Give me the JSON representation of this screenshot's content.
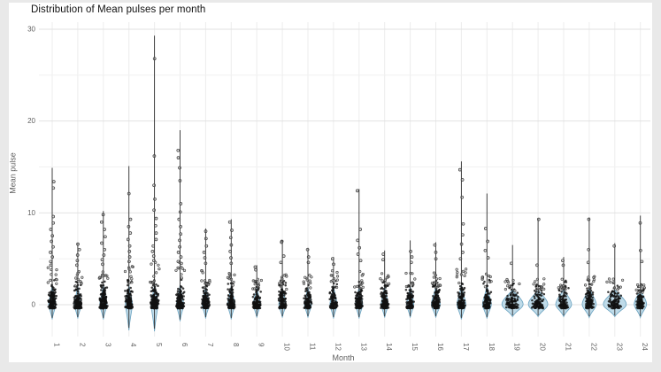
{
  "title": "Distribution of Mean pulses per month",
  "axes": {
    "x_label": "Month",
    "y_label": "Mean pulse",
    "y_ticks": [
      "0",
      "10",
      "20",
      "30"
    ],
    "y_tick_values": [
      0,
      10,
      20,
      30
    ],
    "y_minor_values": [
      5,
      15,
      25
    ],
    "x_ticks": [
      "1",
      "2",
      "3",
      "4",
      "5",
      "6",
      "7",
      "8",
      "9",
      "10",
      "11",
      "12",
      "13",
      "14",
      "15",
      "16",
      "17",
      "18",
      "19",
      "20",
      "21",
      "22",
      "23",
      "24"
    ]
  },
  "colors": {
    "page_bg": "#e9e9e9",
    "panel_bg": "#ffffff",
    "grid_major": "#e2e2e2",
    "grid_minor": "#f1f1f1",
    "grid_vertical": "#ececec",
    "tick_text": "#5f5f5f",
    "title_text": "#111111",
    "violin_fill": "#bcd9e8",
    "violin_stroke": "#69a2c0",
    "dense_point": "#111111",
    "outlier_fill": "#aaaaaa",
    "outlier_stroke": "#3d3d3d",
    "range_line": "#2f2f2f"
  },
  "chart_data": {
    "type": "scatter",
    "subtype": "jitter-strip with violin density, per month",
    "title": "Distribution of Mean pulses per month",
    "xlabel": "Month",
    "ylabel": "Mean pulse",
    "xlim": [
      0.5,
      24.5
    ],
    "ylim": [
      -3,
      30
    ],
    "grid": true,
    "legend": false,
    "note": "Each month: dense near-black jittered mass of points between ~-0.4 and dense_max, open-circle outliers above, a thin vertical range line up to max, and a narrow light-blue violin (wider flat violins for months 19-23). tail_min is the violin's lower tip below zero.",
    "months": [
      {
        "m": 1,
        "max": 14.9,
        "dense_max": 3.8,
        "outliers": [
          13.4,
          12.7,
          9.6,
          8.9,
          8.2,
          7.5,
          6.9,
          6.3,
          5.7,
          5.2,
          4.7,
          4.3
        ],
        "violin_halfwidth": 4,
        "tail_min": -1.6,
        "n_dense": 160
      },
      {
        "m": 2,
        "max": 6.7,
        "dense_max": 3.4,
        "outliers": [
          6.6,
          6.0,
          5.4,
          4.8,
          4.3
        ],
        "violin_halfwidth": 4,
        "tail_min": -1.5,
        "n_dense": 150
      },
      {
        "m": 3,
        "max": 10.2,
        "dense_max": 3.6,
        "outliers": [
          9.8,
          9.0,
          8.2,
          7.4,
          6.7,
          6.0,
          5.4,
          4.9,
          4.4
        ],
        "violin_halfwidth": 4,
        "tail_min": -1.6,
        "n_dense": 160
      },
      {
        "m": 4,
        "max": 15.1,
        "dense_max": 4.0,
        "outliers": [
          12.1,
          9.3,
          8.5,
          7.8,
          7.1,
          6.4,
          5.8,
          5.2,
          4.7
        ],
        "violin_halfwidth": 4,
        "tail_min": -2.8,
        "n_dense": 170
      },
      {
        "m": 5,
        "max": 29.3,
        "dense_max": 4.2,
        "outliers": [
          26.8,
          16.2,
          13.0,
          11.5,
          10.3,
          9.4,
          8.6,
          7.8,
          7.1,
          6.4,
          5.8,
          5.3,
          4.8
        ],
        "violin_halfwidth": 4,
        "tail_min": -2.9,
        "n_dense": 180
      },
      {
        "m": 6,
        "max": 19.0,
        "dense_max": 4.4,
        "outliers": [
          16.8,
          16.0,
          14.9,
          13.5,
          11.0,
          10.1,
          9.3,
          8.5,
          7.7,
          7.0,
          6.3,
          5.7,
          5.2,
          4.7
        ],
        "violin_halfwidth": 4,
        "tail_min": -1.8,
        "n_dense": 180
      },
      {
        "m": 7,
        "max": 8.3,
        "dense_max": 3.4,
        "outliers": [
          8.0,
          7.2,
          6.4,
          5.7,
          5.1,
          4.5
        ],
        "violin_halfwidth": 4,
        "tail_min": -1.5,
        "n_dense": 150
      },
      {
        "m": 8,
        "max": 9.3,
        "dense_max": 3.4,
        "outliers": [
          9.0,
          8.1,
          7.3,
          6.5,
          5.8,
          5.1,
          4.5
        ],
        "violin_halfwidth": 4,
        "tail_min": -1.6,
        "n_dense": 150
      },
      {
        "m": 9,
        "max": 4.3,
        "dense_max": 3.1,
        "outliers": [
          4.1,
          3.8
        ],
        "violin_halfwidth": 4,
        "tail_min": -1.4,
        "n_dense": 130
      },
      {
        "m": 10,
        "max": 7.0,
        "dense_max": 3.0,
        "outliers": [
          6.9,
          6.8,
          5.3,
          4.6
        ],
        "violin_halfwidth": 4,
        "tail_min": -1.4,
        "n_dense": 130
      },
      {
        "m": 11,
        "max": 6.2,
        "dense_max": 3.2,
        "outliers": [
          6.0,
          5.2,
          4.6
        ],
        "violin_halfwidth": 4,
        "tail_min": -1.4,
        "n_dense": 130
      },
      {
        "m": 12,
        "max": 5.2,
        "dense_max": 3.4,
        "outliers": [
          5.0,
          4.4
        ],
        "violin_halfwidth": 4,
        "tail_min": -1.5,
        "n_dense": 130
      },
      {
        "m": 13,
        "max": 12.6,
        "dense_max": 3.3,
        "outliers": [
          12.4,
          8.2,
          7.0,
          6.2,
          5.5,
          4.8
        ],
        "violin_halfwidth": 4,
        "tail_min": -1.5,
        "n_dense": 130
      },
      {
        "m": 14,
        "max": 5.9,
        "dense_max": 3.2,
        "outliers": [
          5.5,
          4.9
        ],
        "violin_halfwidth": 4,
        "tail_min": -1.4,
        "n_dense": 130
      },
      {
        "m": 15,
        "max": 7.0,
        "dense_max": 3.3,
        "outliers": [
          5.8,
          5.2,
          4.6
        ],
        "violin_halfwidth": 4,
        "tail_min": -1.4,
        "n_dense": 130
      },
      {
        "m": 16,
        "max": 6.8,
        "dense_max": 3.4,
        "outliers": [
          6.5,
          5.7,
          5.0
        ],
        "violin_halfwidth": 5,
        "tail_min": -1.4,
        "n_dense": 130
      },
      {
        "m": 17,
        "max": 15.6,
        "dense_max": 3.6,
        "outliers": [
          14.7,
          13.6,
          11.7,
          8.8,
          7.6,
          6.6,
          5.7,
          5.0
        ],
        "violin_halfwidth": 5,
        "tail_min": -1.6,
        "n_dense": 140
      },
      {
        "m": 18,
        "max": 12.1,
        "dense_max": 3.5,
        "outliers": [
          8.3,
          6.9,
          5.9,
          5.1
        ],
        "violin_halfwidth": 5,
        "tail_min": -1.5,
        "n_dense": 140
      },
      {
        "m": 19,
        "max": 6.5,
        "dense_max": 2.6,
        "outliers": [
          4.5
        ],
        "violin_halfwidth": 12,
        "tail_min": -1.3,
        "n_dense": 110
      },
      {
        "m": 20,
        "max": 9.4,
        "dense_max": 2.6,
        "outliers": [
          9.3,
          4.3
        ],
        "violin_halfwidth": 11,
        "tail_min": -1.3,
        "n_dense": 110
      },
      {
        "m": 21,
        "max": 5.2,
        "dense_max": 2.7,
        "outliers": [
          4.8,
          4.3
        ],
        "violin_halfwidth": 9,
        "tail_min": -1.3,
        "n_dense": 110
      },
      {
        "m": 22,
        "max": 9.5,
        "dense_max": 2.9,
        "outliers": [
          9.3,
          6.0,
          4.6
        ],
        "violin_halfwidth": 8,
        "tail_min": -1.4,
        "n_dense": 120
      },
      {
        "m": 23,
        "max": 6.7,
        "dense_max": 2.6,
        "outliers": [
          6.4
        ],
        "violin_halfwidth": 13,
        "tail_min": -1.3,
        "n_dense": 110
      },
      {
        "m": 24,
        "max": 9.7,
        "dense_max": 2.4,
        "outliers": [
          8.9,
          5.9,
          4.7
        ],
        "violin_halfwidth": 7,
        "tail_min": -1.4,
        "n_dense": 100
      }
    ]
  }
}
